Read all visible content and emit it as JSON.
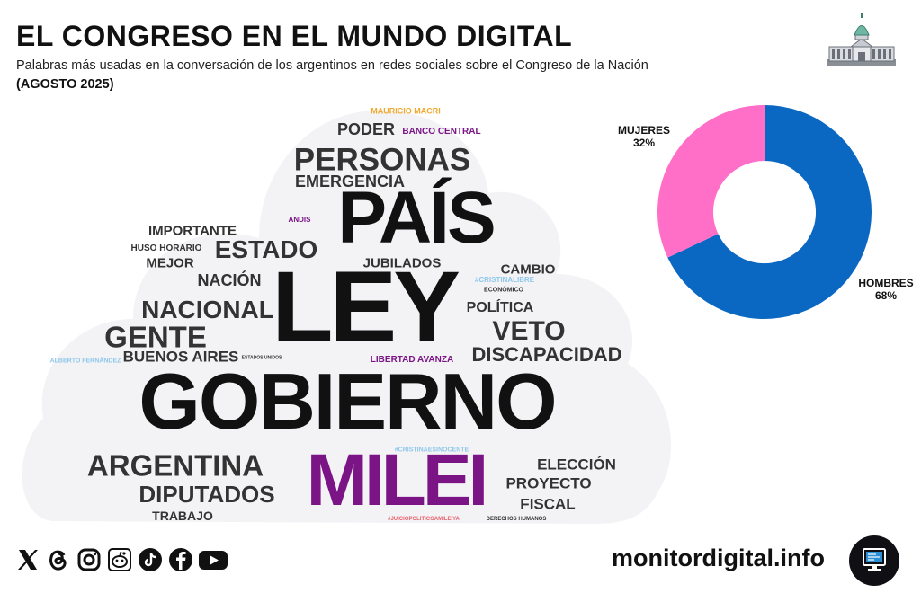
{
  "header": {
    "title": "EL CONGRESO EN EL MUNDO DIGITAL",
    "subtitle": "Palabras más usadas en la conversación de los argentinos en redes sociales sobre el Congreso de la Nación",
    "date": "(AGOSTO 2025)"
  },
  "colors": {
    "cloud_bg": "#f3f3f6",
    "word_dark": "#111111",
    "word_gray": "#333333",
    "purple": "#7b1586",
    "light_blue": "#8ec7ea",
    "orange": "#f0a92d",
    "red": "#e8616b",
    "hombres": "#0a67c2",
    "mujeres": "#ff6ec7"
  },
  "chart_data": [
    {
      "type": "wordcloud",
      "words": [
        {
          "text": "GOBIERNO",
          "weight": 100,
          "color": "#111111"
        },
        {
          "text": "LEY",
          "weight": 95,
          "color": "#111111"
        },
        {
          "text": "PAÍS",
          "weight": 88,
          "color": "#111111"
        },
        {
          "text": "MILEI",
          "weight": 85,
          "color": "#7b1586"
        },
        {
          "text": "PERSONAS",
          "weight": 40,
          "color": "#333333"
        },
        {
          "text": "ARGENTINA",
          "weight": 38,
          "color": "#333333"
        },
        {
          "text": "GENTE",
          "weight": 36,
          "color": "#333333"
        },
        {
          "text": "NACIONAL",
          "weight": 34,
          "color": "#333333"
        },
        {
          "text": "VETO",
          "weight": 33,
          "color": "#333333"
        },
        {
          "text": "ESTADO",
          "weight": 33,
          "color": "#333333"
        },
        {
          "text": "DIPUTADOS",
          "weight": 30,
          "color": "#333333"
        },
        {
          "text": "DISCAPACIDAD",
          "weight": 26,
          "color": "#333333"
        },
        {
          "text": "EMERGENCIA",
          "weight": 22,
          "color": "#333333"
        },
        {
          "text": "PODER",
          "weight": 21,
          "color": "#333333"
        },
        {
          "text": "NACIÓN",
          "weight": 20,
          "color": "#333333"
        },
        {
          "text": "BUENOS AIRES",
          "weight": 19,
          "color": "#333333"
        },
        {
          "text": "ELECCIÓN",
          "weight": 18,
          "color": "#333333"
        },
        {
          "text": "PROYECTO",
          "weight": 18,
          "color": "#333333"
        },
        {
          "text": "FISCAL",
          "weight": 18,
          "color": "#333333"
        },
        {
          "text": "POLÍTICA",
          "weight": 18,
          "color": "#333333"
        },
        {
          "text": "IMPORTANTE",
          "weight": 17,
          "color": "#333333"
        },
        {
          "text": "JUBILADOS",
          "weight": 17,
          "color": "#333333"
        },
        {
          "text": "MEJOR",
          "weight": 17,
          "color": "#333333"
        },
        {
          "text": "CAMBIO",
          "weight": 17,
          "color": "#333333"
        },
        {
          "text": "TRABAJO",
          "weight": 16,
          "color": "#333333"
        },
        {
          "text": "HUSO HORARIO",
          "weight": 12,
          "color": "#333333"
        },
        {
          "text": "BANCO CENTRAL",
          "weight": 11,
          "color": "#7b1586"
        },
        {
          "text": "LIBERTAD AVANZA",
          "weight": 11,
          "color": "#7b1586"
        },
        {
          "text": "MAURICIO MACRI",
          "weight": 10,
          "color": "#f0a92d"
        },
        {
          "text": "ANDIS",
          "weight": 9,
          "color": "#7b1586"
        },
        {
          "text": "#CRISTINALIBRE",
          "weight": 9,
          "color": "#8ec7ea"
        },
        {
          "text": "ECONÓMICO",
          "weight": 9,
          "color": "#333333"
        },
        {
          "text": "ALBERTO FERNÁNDEZ",
          "weight": 8,
          "color": "#8ec7ea"
        },
        {
          "text": "#CRISTINAESINOCENTE",
          "weight": 8,
          "color": "#8ec7ea"
        },
        {
          "text": "#JUICIOPOLITICOAMILEIYA",
          "weight": 7,
          "color": "#e8616b"
        },
        {
          "text": "DERECHOS HUMANOS",
          "weight": 7,
          "color": "#333333"
        },
        {
          "text": "ESTADOS UNIDOS",
          "weight": 5,
          "color": "#333333"
        }
      ]
    },
    {
      "type": "pie",
      "style": "donut",
      "slices": [
        {
          "label": "HOMBRES",
          "value": 68,
          "display": "68%",
          "color": "#0a67c2"
        },
        {
          "label": "MUJERES",
          "value": 32,
          "display": "32%",
          "color": "#ff6ec7"
        }
      ]
    }
  ],
  "footer": {
    "social_icons": [
      "x-icon",
      "threads-icon",
      "instagram-icon",
      "reddit-icon",
      "tiktok-icon",
      "facebook-icon",
      "youtube-icon"
    ],
    "website": "monitordigital.info",
    "logo_icon": "monitor-icon"
  }
}
